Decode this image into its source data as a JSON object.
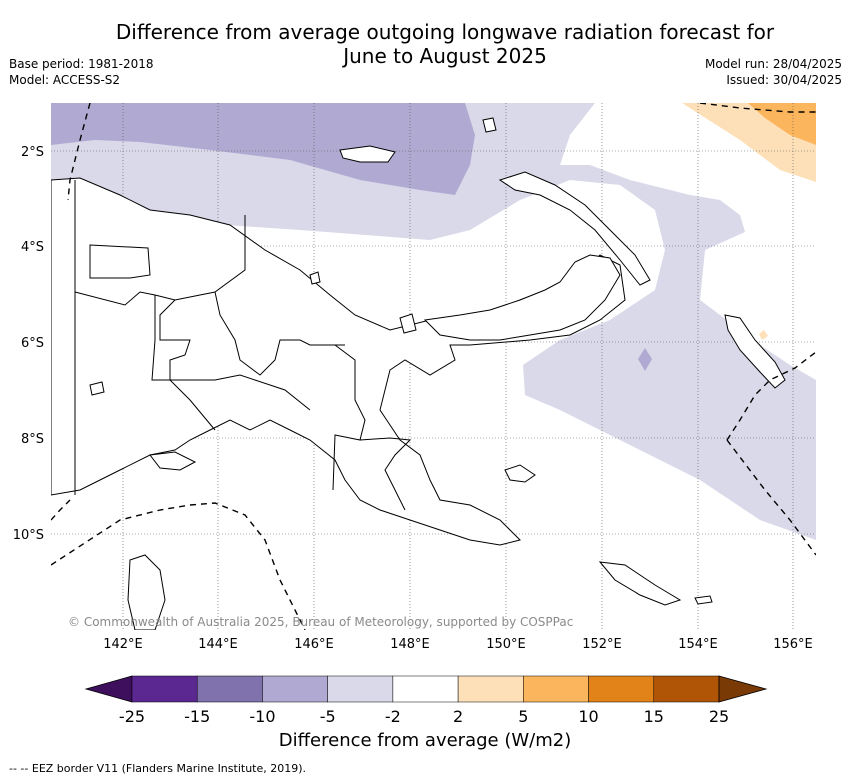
{
  "title_line1": "Difference from average outgoing longwave radiation forecast for",
  "title_line2": "June to August 2025",
  "meta_left": {
    "base_period": "Base period: 1981-2018",
    "model": "Model: ACCESS-S2"
  },
  "meta_right": {
    "model_run": "Model run: 28/04/2025",
    "issued": "Issued: 30/04/2025"
  },
  "lat_labels": [
    "2°S",
    "4°S",
    "6°S",
    "8°S",
    "10°S"
  ],
  "lon_labels": [
    "142°E",
    "144°E",
    "146°E",
    "148°E",
    "150°E",
    "152°E",
    "154°E",
    "156°E"
  ],
  "copyright": "© Commonwealth of Australia 2025, Bureau of Meteorology, supported by COSPPac",
  "colorbar": {
    "title": "Difference from average (W/m2)",
    "tick_labels": [
      "-25",
      "-15",
      "-10",
      "-5",
      "-2",
      "2",
      "5",
      "10",
      "15",
      "25"
    ],
    "colors": [
      "#3d0f5c",
      "#5b2790",
      "#8073ad",
      "#b0aad2",
      "#d9d9ea",
      "#ffffff",
      "#fde0b8",
      "#fbb55c",
      "#e2831a",
      "#b05506",
      "#7a3a05"
    ]
  },
  "legend_text": "-- -- EEZ border V11 (Flanders Marine Institute, 2019)."
}
